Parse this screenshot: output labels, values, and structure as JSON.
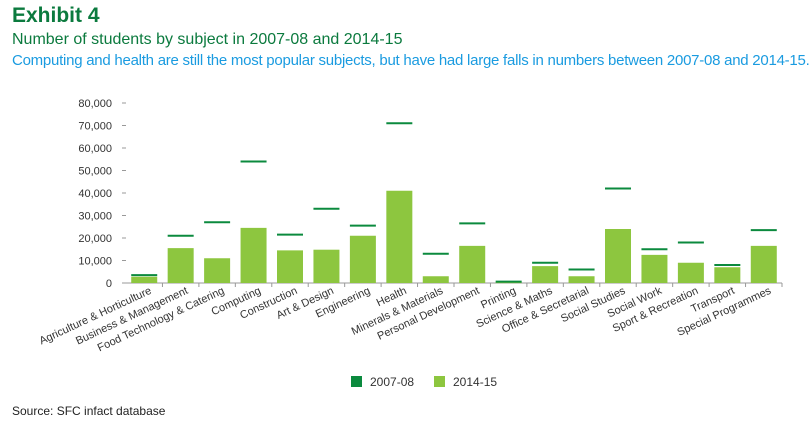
{
  "header": {
    "exhibit": "Exhibit 4",
    "title": "Number of students by subject in 2007-08 and 2014-15",
    "subtitle": "Computing and health are still the most popular subjects, but have had large falls in numbers between 2007-08 and 2014-15."
  },
  "footer": {
    "source": "Source: SFC infact database"
  },
  "colors": {
    "series_2007": "#0b8a3e",
    "series_2014": "#8dc63f",
    "axis": "#999999",
    "grid": "#dddddd"
  },
  "chart_data": {
    "type": "bar",
    "categories": [
      "Agriculture & Horticulture",
      "Business & Management",
      "Food Technology & Catering",
      "Computing",
      "Construction",
      "Art & Design",
      "Engineering",
      "Health",
      "Minerals & Materials",
      "Personal Development",
      "Printing",
      "Science & Maths",
      "Office & Secretarial",
      "Social Studies",
      "Social Work",
      "Sport & Recreation",
      "Transport",
      "Special Programmes"
    ],
    "series": [
      {
        "name": "2007-08",
        "style": "line-marker",
        "values": [
          3500,
          21000,
          27000,
          54000,
          21500,
          33000,
          25500,
          71000,
          13000,
          26500,
          600,
          9000,
          6000,
          42000,
          15000,
          18000,
          8000,
          23500
        ]
      },
      {
        "name": "2014-15",
        "style": "bar",
        "values": [
          2800,
          15500,
          11000,
          24500,
          14500,
          14800,
          21000,
          41000,
          3000,
          16500,
          300,
          7500,
          3000,
          24000,
          12500,
          9000,
          7000,
          16500
        ]
      }
    ],
    "ylim": [
      0,
      80000
    ],
    "yticks": [
      "0",
      "10,000",
      "20,000",
      "30,000",
      "40,000",
      "50,000",
      "60,000",
      "70,000",
      "80,000"
    ],
    "grid": false,
    "legend": "bottom-center"
  }
}
